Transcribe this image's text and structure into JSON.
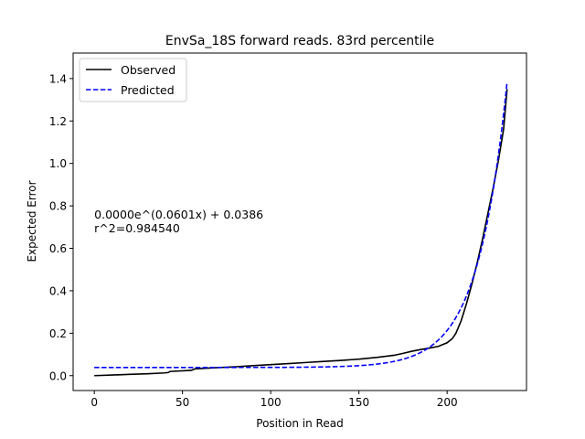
{
  "chart_data": {
    "type": "line",
    "title": "EnvSa_18S forward reads. 83rd percentile",
    "xlabel": "Position in Read",
    "ylabel": "Expected Error",
    "xlim": [
      -12,
      245
    ],
    "ylim": [
      -0.07,
      1.52
    ],
    "xticks": [
      0,
      50,
      100,
      150,
      200
    ],
    "yticks": [
      0.0,
      0.2,
      0.4,
      0.6,
      0.8,
      1.0,
      1.2,
      1.4
    ],
    "xtick_labels": [
      "0",
      "50",
      "100",
      "150",
      "200"
    ],
    "ytick_labels": [
      "0.0",
      "0.2",
      "0.4",
      "0.6",
      "0.8",
      "1.0",
      "1.2",
      "1.4"
    ],
    "grid": false,
    "legend_position": "top-left",
    "annotation": {
      "line1": "0.0000e^(0.0601x) + 0.0386",
      "line2": "r^2=0.984540",
      "x": 0,
      "y": 0.74
    },
    "series": [
      {
        "name": "Observed",
        "color": "#000000",
        "dash": "solid",
        "points": [
          [
            0,
            0.0
          ],
          [
            10,
            0.003
          ],
          [
            20,
            0.006
          ],
          [
            30,
            0.009
          ],
          [
            40,
            0.013
          ],
          [
            42,
            0.015
          ],
          [
            43,
            0.02
          ],
          [
            55,
            0.025
          ],
          [
            57,
            0.032
          ],
          [
            70,
            0.038
          ],
          [
            80,
            0.042
          ],
          [
            90,
            0.047
          ],
          [
            100,
            0.052
          ],
          [
            110,
            0.057
          ],
          [
            120,
            0.062
          ],
          [
            130,
            0.067
          ],
          [
            140,
            0.072
          ],
          [
            150,
            0.078
          ],
          [
            160,
            0.086
          ],
          [
            170,
            0.096
          ],
          [
            175,
            0.105
          ],
          [
            180,
            0.115
          ],
          [
            185,
            0.123
          ],
          [
            190,
            0.13
          ],
          [
            195,
            0.138
          ],
          [
            200,
            0.155
          ],
          [
            203,
            0.175
          ],
          [
            205,
            0.2
          ],
          [
            208,
            0.26
          ],
          [
            211,
            0.34
          ],
          [
            214,
            0.43
          ],
          [
            217,
            0.53
          ],
          [
            220,
            0.64
          ],
          [
            223,
            0.76
          ],
          [
            226,
            0.88
          ],
          [
            229,
            1.01
          ],
          [
            232,
            1.16
          ],
          [
            234,
            1.35
          ]
        ]
      },
      {
        "name": "Predicted",
        "color": "#0000ff",
        "dash": "dashed",
        "model": {
          "a": 1.05e-06,
          "b": 0.0601,
          "c": 0.0386
        },
        "x_range": [
          0,
          234
        ]
      }
    ]
  }
}
